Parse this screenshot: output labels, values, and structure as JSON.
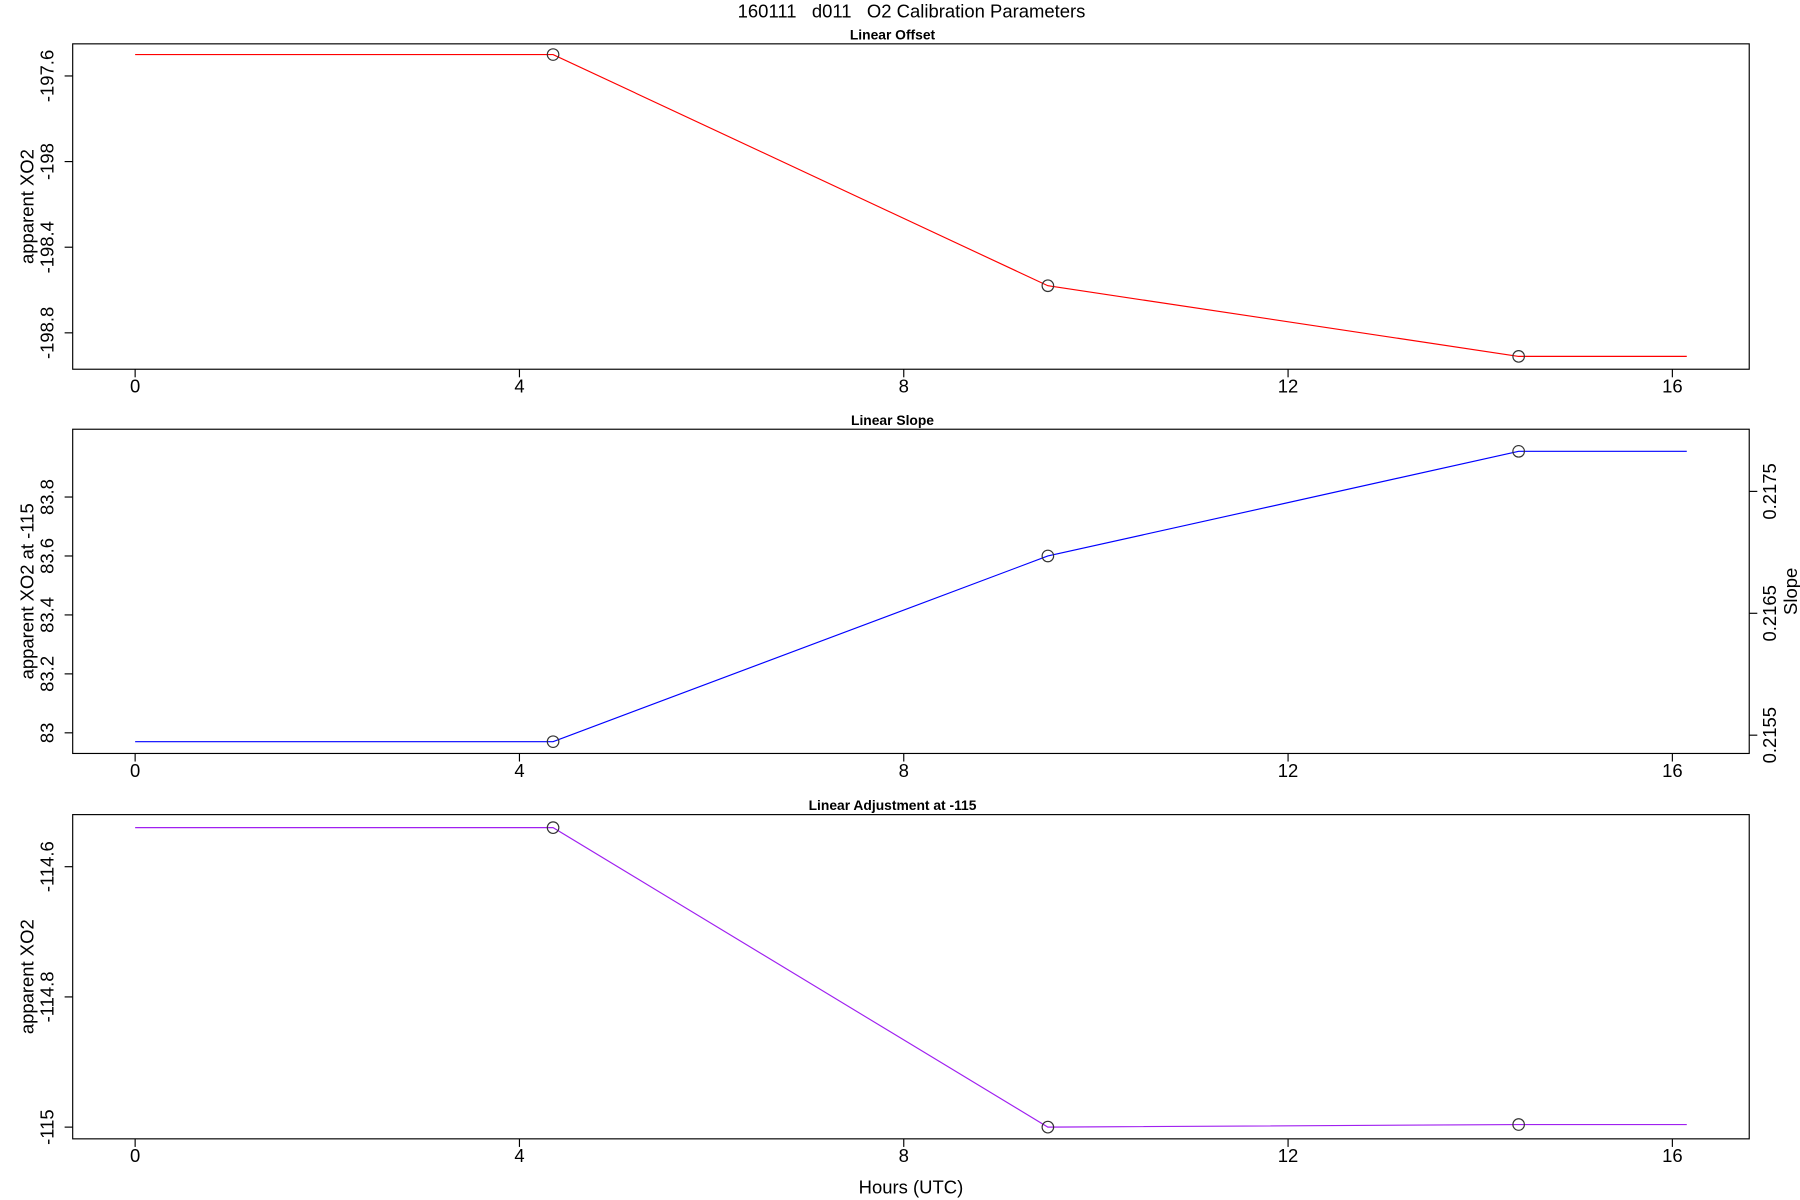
{
  "title": "160111   d011   O2 Calibration Parameters",
  "chart_data": [
    {
      "type": "line",
      "title": "Linear Offset",
      "y_label": "apparent XO2",
      "color": "#ff0000",
      "x": [
        0,
        4.35,
        9.5,
        14.4,
        16.15
      ],
      "values": [
        -197.5,
        -197.5,
        -198.58,
        -198.91,
        -198.91
      ],
      "markers": [
        false,
        true,
        true,
        true,
        false
      ],
      "xlim": [
        -0.65,
        16.8
      ],
      "xticks": [
        0,
        4,
        8,
        12,
        16
      ],
      "ylim": [
        -198.97,
        -197.45
      ],
      "yticks": [
        -197.6,
        -198.0,
        -198.4,
        -198.8
      ]
    },
    {
      "type": "line",
      "title": "Linear Slope",
      "y_label": "apparent XO2 at -115",
      "y2_label": "Slope",
      "color": "#0000ff",
      "x": [
        0,
        4.35,
        9.5,
        14.4,
        16.15
      ],
      "values": [
        82.97,
        82.97,
        83.6,
        83.955,
        83.955
      ],
      "markers": [
        false,
        true,
        true,
        true,
        false
      ],
      "xlim": [
        -0.65,
        16.8
      ],
      "xticks": [
        0,
        4,
        8,
        12,
        16
      ],
      "ylim": [
        82.93,
        84.03
      ],
      "yticks": [
        83.0,
        83.2,
        83.4,
        83.6,
        83.8
      ],
      "y2lim": [
        0.21535,
        0.21801
      ],
      "y2ticks": [
        0.2155,
        0.2165,
        0.2175
      ]
    },
    {
      "type": "line",
      "title": "Linear Adjustment at -115",
      "y_label": "apparent XO2",
      "x_label": "Hours (UTC)",
      "color": "#a020f0",
      "x": [
        0,
        4.35,
        9.5,
        14.4,
        16.15
      ],
      "values": [
        -114.54,
        -114.54,
        -115.0,
        -114.996,
        -114.996
      ],
      "markers": [
        false,
        true,
        true,
        true,
        false
      ],
      "xlim": [
        -0.65,
        16.8
      ],
      "xticks": [
        0,
        4,
        8,
        12,
        16
      ],
      "ylim": [
        -115.018,
        -114.52
      ],
      "yticks": [
        -114.6,
        -114.8,
        -115.0
      ]
    }
  ]
}
